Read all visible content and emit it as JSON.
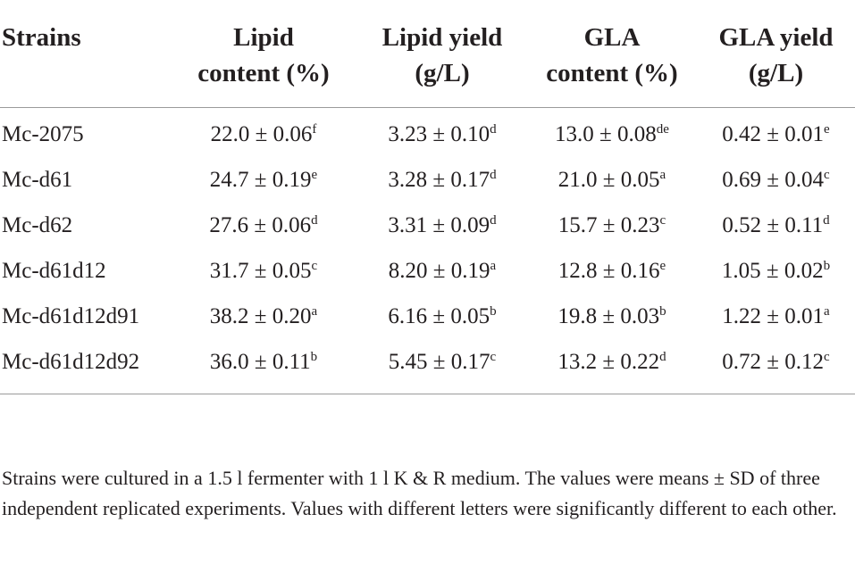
{
  "table": {
    "headers": [
      [
        "Strains"
      ],
      [
        "Lipid",
        "content (%)"
      ],
      [
        "Lipid yield",
        "(g/L)"
      ],
      [
        "GLA",
        "content (%)"
      ],
      [
        "GLA yield",
        "(g/L)"
      ]
    ],
    "rows": [
      {
        "strain": "Mc-2075",
        "cells": [
          {
            "value": "22.0 ± 0.06",
            "sup": "f"
          },
          {
            "value": "3.23 ± 0.10",
            "sup": "d"
          },
          {
            "value": "13.0 ± 0.08",
            "sup": "de"
          },
          {
            "value": "0.42 ± 0.01",
            "sup": "e"
          }
        ]
      },
      {
        "strain": "Mc-d61",
        "cells": [
          {
            "value": "24.7 ± 0.19",
            "sup": "e"
          },
          {
            "value": "3.28 ± 0.17",
            "sup": "d"
          },
          {
            "value": "21.0 ± 0.05",
            "sup": "a"
          },
          {
            "value": "0.69 ± 0.04",
            "sup": "c"
          }
        ]
      },
      {
        "strain": "Mc-d62",
        "cells": [
          {
            "value": "27.6 ± 0.06",
            "sup": "d"
          },
          {
            "value": "3.31 ± 0.09",
            "sup": "d"
          },
          {
            "value": "15.7 ± 0.23",
            "sup": "c"
          },
          {
            "value": "0.52 ± 0.11",
            "sup": "d"
          }
        ]
      },
      {
        "strain": "Mc-d61d12",
        "cells": [
          {
            "value": "31.7 ± 0.05",
            "sup": "c"
          },
          {
            "value": "8.20 ± 0.19",
            "sup": "a"
          },
          {
            "value": "12.8 ± 0.16",
            "sup": "e"
          },
          {
            "value": "1.05 ± 0.02",
            "sup": "b"
          }
        ]
      },
      {
        "strain": "Mc-d61d12d91",
        "cells": [
          {
            "value": "38.2 ± 0.20",
            "sup": "a"
          },
          {
            "value": "6.16 ± 0.05",
            "sup": "b"
          },
          {
            "value": "19.8 ± 0.03",
            "sup": "b"
          },
          {
            "value": "1.22 ± 0.01",
            "sup": "a"
          }
        ]
      },
      {
        "strain": "Mc-d61d12d92",
        "cells": [
          {
            "value": "36.0 ± 0.11",
            "sup": "b"
          },
          {
            "value": "5.45 ± 0.17",
            "sup": "c"
          },
          {
            "value": "13.2 ± 0.22",
            "sup": "d"
          },
          {
            "value": "0.72 ± 0.12",
            "sup": "c"
          }
        ]
      }
    ]
  },
  "footnote": "Strains were cultured in a 1.5 l fermenter with 1 l K & R medium. The values were means ± SD of three independent replicated experiments. Values with different letters were significantly different to each other."
}
